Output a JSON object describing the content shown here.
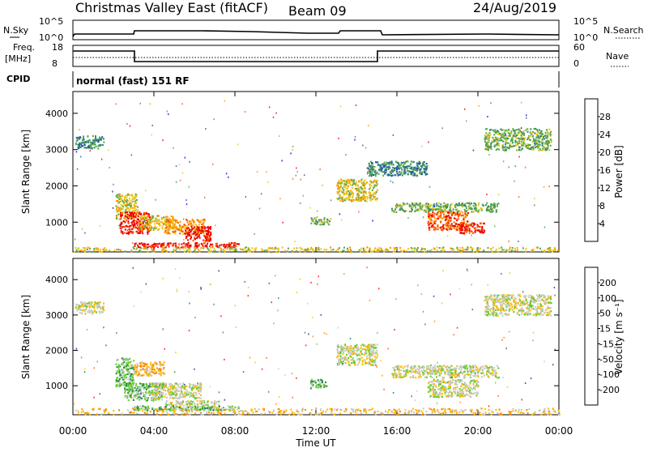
{
  "title": {
    "station": "Christmas Valley East (fitACF)",
    "beam": "Beam 09",
    "date": "24/Aug/2019"
  },
  "header_panels": {
    "nsky_label": "N.Sky",
    "nsky_ticks": [
      "10^5",
      "10^0"
    ],
    "nsearch_label": "N.Search",
    "nsearch_ticks": [
      "10^5",
      "10^0"
    ],
    "freq_label": "Freq.",
    "freq_unit": "[MHz]",
    "freq_ticks": [
      "18",
      "8"
    ],
    "nave_label": "Nave",
    "nave_ticks": [
      "60",
      "0"
    ],
    "cpid_label": "CPID",
    "cpid_value": "normal (fast) 151 RF"
  },
  "colors": {
    "power_scale": [
      "#0000ff",
      "#1f5aa8",
      "#3a8a6a",
      "#5aaa4a",
      "#e8c820",
      "#ff9900",
      "#ff5500",
      "#ee0000"
    ],
    "velocity_scale": [
      "#ff0000",
      "#ff5500",
      "#ff8800",
      "#ffbb00",
      "#c8c8c8",
      "#66cc33",
      "#2a8a4a",
      "#1a6a5a",
      "#1a2aa0"
    ]
  },
  "chart_data": [
    {
      "type": "heatmap",
      "name": "power",
      "ylabel": "Slant Range [km]",
      "y_ticks": [
        1000,
        2000,
        3000,
        4000
      ],
      "ylim": [
        180,
        4600
      ],
      "x_ticks": [
        "00:00",
        "04:00",
        "08:00",
        "12:00",
        "16:00",
        "20:00",
        "00:00"
      ],
      "xlim_hours": [
        0,
        24
      ],
      "colorbar_label": "Power [dB]",
      "colorbar_ticks": [
        "4",
        "8",
        "12",
        "16",
        "20",
        "24",
        "28"
      ],
      "blobs": [
        {
          "t": [
            0.1,
            1.5
          ],
          "r": [
            3050,
            3400
          ],
          "level": 2
        },
        {
          "t": [
            2.1,
            3.2
          ],
          "r": [
            1100,
            1800
          ],
          "level": 4
        },
        {
          "t": [
            2.3,
            3.8
          ],
          "r": [
            700,
            1300
          ],
          "level": 7
        },
        {
          "t": [
            3.3,
            5.0
          ],
          "r": [
            800,
            1200
          ],
          "level": 4
        },
        {
          "t": [
            4.5,
            6.5
          ],
          "r": [
            700,
            1100
          ],
          "level": 5
        },
        {
          "t": [
            5.5,
            6.8
          ],
          "r": [
            500,
            900
          ],
          "level": 7
        },
        {
          "t": [
            3.0,
            8.2
          ],
          "r": [
            320,
            450
          ],
          "level": 7
        },
        {
          "t": [
            11.7,
            12.7
          ],
          "r": [
            950,
            1150
          ],
          "level": 3
        },
        {
          "t": [
            13.0,
            15.0
          ],
          "r": [
            1600,
            2200
          ],
          "level": 4
        },
        {
          "t": [
            14.5,
            17.5
          ],
          "r": [
            2300,
            2700
          ],
          "level": 2
        },
        {
          "t": [
            15.7,
            21.0
          ],
          "r": [
            1300,
            1550
          ],
          "level": 3
        },
        {
          "t": [
            17.5,
            19.5
          ],
          "r": [
            800,
            1300
          ],
          "level": 6
        },
        {
          "t": [
            19.0,
            20.3
          ],
          "r": [
            700,
            1000
          ],
          "level": 7
        },
        {
          "t": [
            20.3,
            23.6
          ],
          "r": [
            3000,
            3600
          ],
          "level": 3
        },
        {
          "t": [
            0.0,
            24.0
          ],
          "r": [
            200,
            330
          ],
          "level": 4
        }
      ]
    },
    {
      "type": "heatmap",
      "name": "velocity",
      "ylabel": "Slant Range [km]",
      "y_ticks": [
        1000,
        2000,
        3000,
        4000
      ],
      "ylim": [
        180,
        4600
      ],
      "x_ticks": [
        "00:00",
        "04:00",
        "08:00",
        "12:00",
        "16:00",
        "20:00",
        "00:00"
      ],
      "xlim_hours": [
        0,
        24
      ],
      "xlabel": "Time UT",
      "colorbar_label": "Velocity [m s⁻¹]",
      "colorbar_ticks": [
        "-200",
        "-100",
        "-50",
        "-15",
        "15",
        "50",
        "100",
        "200"
      ],
      "blobs": [
        {
          "t": [
            0.1,
            1.5
          ],
          "r": [
            3050,
            3400
          ],
          "level": 4
        },
        {
          "t": [
            2.1,
            3.0
          ],
          "r": [
            1000,
            1800
          ],
          "level": 5
        },
        {
          "t": [
            3.0,
            4.5
          ],
          "r": [
            1300,
            1700
          ],
          "level": 3
        },
        {
          "t": [
            2.5,
            4.5
          ],
          "r": [
            600,
            1100
          ],
          "level": 5
        },
        {
          "t": [
            3.8,
            6.3
          ],
          "r": [
            650,
            1100
          ],
          "level": 4
        },
        {
          "t": [
            4.5,
            7.2
          ],
          "r": [
            330,
            600
          ],
          "level": 4
        },
        {
          "t": [
            3.0,
            8.2
          ],
          "r": [
            320,
            450
          ],
          "level": 5
        },
        {
          "t": [
            11.7,
            12.5
          ],
          "r": [
            950,
            1200
          ],
          "level": 5
        },
        {
          "t": [
            13.0,
            15.0
          ],
          "r": [
            1600,
            2200
          ],
          "level": 4
        },
        {
          "t": [
            15.7,
            21.0
          ],
          "r": [
            1250,
            1600
          ],
          "level": 4
        },
        {
          "t": [
            17.5,
            20.0
          ],
          "r": [
            700,
            1200
          ],
          "level": 4
        },
        {
          "t": [
            20.3,
            23.6
          ],
          "r": [
            3000,
            3600
          ],
          "level": 4
        },
        {
          "t": [
            0.0,
            24.0
          ],
          "r": [
            200,
            380
          ],
          "level": 3
        }
      ]
    }
  ]
}
